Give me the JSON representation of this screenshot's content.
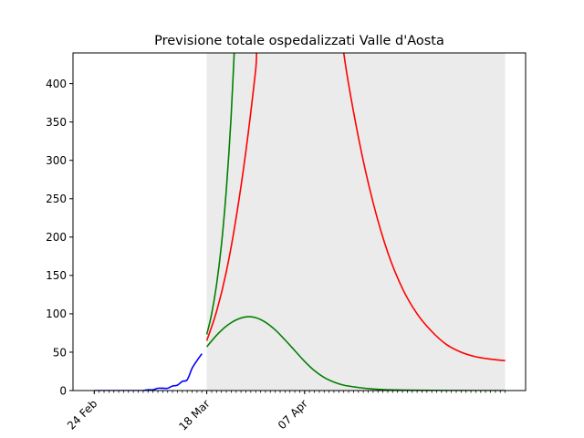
{
  "chart_data": {
    "type": "line",
    "title": "Previsione totale ospedalizzati Valle d'Aosta",
    "xlabel": "",
    "ylabel": "",
    "x_axis": {
      "type": "date",
      "range": [
        "2020-02-24",
        "2020-05-18"
      ],
      "tick_labels": [
        {
          "date": "2020-02-24",
          "label": "24 Feb"
        },
        {
          "date": "2020-03-18",
          "label": "18 Mar"
        },
        {
          "date": "2020-04-07",
          "label": "07 Apr"
        }
      ]
    },
    "ylim": [
      0,
      440
    ],
    "y_ticks": [
      0,
      50,
      100,
      150,
      200,
      250,
      300,
      350,
      400
    ],
    "grid": false,
    "legend": "none",
    "forecast_band": {
      "start": "2020-03-18",
      "end": "2020-05-18",
      "color": "#ebebeb"
    },
    "series": [
      {
        "color": "#0000ff",
        "points": [
          [
            "2020-02-24",
            0
          ],
          [
            "2020-02-25",
            0
          ],
          [
            "2020-02-26",
            0
          ],
          [
            "2020-02-27",
            0
          ],
          [
            "2020-02-28",
            0
          ],
          [
            "2020-02-29",
            0
          ],
          [
            "2020-03-01",
            0
          ],
          [
            "2020-03-02",
            0
          ],
          [
            "2020-03-03",
            0
          ],
          [
            "2020-03-04",
            0
          ],
          [
            "2020-03-05",
            0
          ],
          [
            "2020-03-06",
            1
          ],
          [
            "2020-03-07",
            1
          ],
          [
            "2020-03-08",
            3
          ],
          [
            "2020-03-09",
            3
          ],
          [
            "2020-03-10",
            3
          ],
          [
            "2020-03-11",
            6
          ],
          [
            "2020-03-12",
            7
          ],
          [
            "2020-03-13",
            12
          ],
          [
            "2020-03-14",
            14
          ],
          [
            "2020-03-15",
            29
          ],
          [
            "2020-03-16",
            39
          ],
          [
            "2020-03-17",
            48
          ]
        ]
      },
      {
        "color": "#008000",
        "points": [
          [
            "2020-03-18",
            73
          ],
          [
            "2020-03-19",
            100
          ],
          [
            "2020-03-20",
            138
          ],
          [
            "2020-03-21",
            190
          ],
          [
            "2020-03-22",
            262
          ],
          [
            "2020-03-23",
            360
          ],
          [
            "2020-03-24",
            495
          ]
        ]
      },
      {
        "color": "#ff0000",
        "points": [
          [
            "2020-03-18",
            65
          ],
          [
            "2020-03-20",
            103
          ],
          [
            "2020-03-22",
            155
          ],
          [
            "2020-03-24",
            225
          ],
          [
            "2020-03-26",
            312
          ],
          [
            "2020-03-28",
            418
          ],
          [
            "2020-03-30",
            540
          ],
          [
            "2020-04-13",
            560
          ],
          [
            "2020-04-15",
            440
          ],
          [
            "2020-04-18",
            330
          ],
          [
            "2020-04-21",
            245
          ],
          [
            "2020-04-24",
            180
          ],
          [
            "2020-04-27",
            133
          ],
          [
            "2020-04-30",
            100
          ],
          [
            "2020-05-03",
            77
          ],
          [
            "2020-05-06",
            60
          ],
          [
            "2020-05-09",
            50
          ],
          [
            "2020-05-12",
            44
          ],
          [
            "2020-05-15",
            41
          ],
          [
            "2020-05-18",
            39
          ]
        ]
      },
      {
        "color": "#008000",
        "points": [
          [
            "2020-03-18",
            57
          ],
          [
            "2020-03-20",
            72
          ],
          [
            "2020-03-22",
            84
          ],
          [
            "2020-03-24",
            92
          ],
          [
            "2020-03-26",
            96
          ],
          [
            "2020-03-28",
            95
          ],
          [
            "2020-03-30",
            89
          ],
          [
            "2020-04-01",
            79
          ],
          [
            "2020-04-03",
            66
          ],
          [
            "2020-04-05",
            52
          ],
          [
            "2020-04-07",
            38
          ],
          [
            "2020-04-09",
            26
          ],
          [
            "2020-04-11",
            17
          ],
          [
            "2020-04-13",
            11
          ],
          [
            "2020-04-15",
            7
          ],
          [
            "2020-04-18",
            4
          ],
          [
            "2020-04-21",
            2
          ],
          [
            "2020-04-24",
            1
          ],
          [
            "2020-04-30",
            0.4
          ],
          [
            "2020-05-06",
            0.1
          ],
          [
            "2020-05-12",
            0
          ],
          [
            "2020-05-18",
            0
          ]
        ]
      }
    ]
  }
}
